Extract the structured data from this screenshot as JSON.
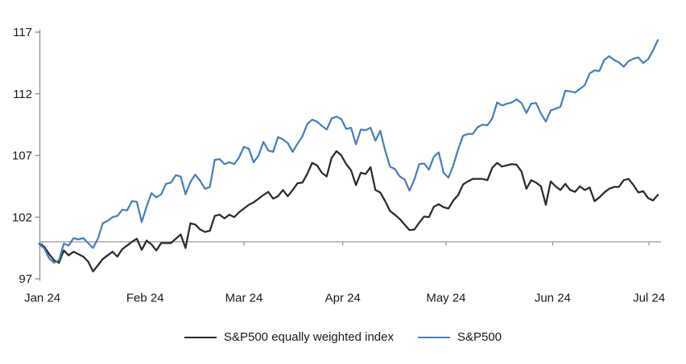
{
  "chart_data": {
    "type": "line",
    "title": "",
    "legend_position": "bottom-center",
    "reference_line_value": 100,
    "axis_color": "#8e8e8e",
    "label_color": "#1a1a1a",
    "font_size_px": 15,
    "y_axis": {
      "ticks": [
        97,
        102,
        107,
        112,
        117
      ],
      "range": [
        97,
        117
      ],
      "gridlines": false
    },
    "x_axis": {
      "tick_labels": [
        "Jan 24",
        "Feb 24",
        "Mar 24",
        "Apr 24",
        "May 24",
        "Jun 24",
        "Jul 24"
      ],
      "tick_point_index": [
        0.6,
        21.7,
        42.0,
        62.3,
        83.5,
        105.4,
        125.2
      ]
    },
    "series": [
      {
        "name": "S&P500 equally weighted index",
        "color": "#2b2b2b",
        "values": [
          99.85,
          99.6,
          99.0,
          98.5,
          98.3,
          99.3,
          98.9,
          99.2,
          99.0,
          98.8,
          98.4,
          97.6,
          98.1,
          98.6,
          98.9,
          99.2,
          98.8,
          99.4,
          99.7,
          100.0,
          100.25,
          99.35,
          100.1,
          99.8,
          99.3,
          99.9,
          99.9,
          99.9,
          100.25,
          100.6,
          99.5,
          101.5,
          101.4,
          101.0,
          100.8,
          100.9,
          102.1,
          102.2,
          101.9,
          102.2,
          102.0,
          102.4,
          102.7,
          103.0,
          103.2,
          103.5,
          103.8,
          104.05,
          103.5,
          103.7,
          104.2,
          103.7,
          104.2,
          104.75,
          104.8,
          105.5,
          106.4,
          106.2,
          105.6,
          105.3,
          106.8,
          107.35,
          107.0,
          106.3,
          105.8,
          104.6,
          105.6,
          105.5,
          106.05,
          104.2,
          104.0,
          103.3,
          102.5,
          102.2,
          101.85,
          101.4,
          100.95,
          101.0,
          101.55,
          102.05,
          102.0,
          102.85,
          103.05,
          102.8,
          102.7,
          103.35,
          103.8,
          104.65,
          104.9,
          105.1,
          105.1,
          105.1,
          105.0,
          106.0,
          106.4,
          106.1,
          106.2,
          106.3,
          106.25,
          105.7,
          104.3,
          105.0,
          104.8,
          104.5,
          103.0,
          104.9,
          104.5,
          104.2,
          104.7,
          104.2,
          104.05,
          104.5,
          104.2,
          104.4,
          103.3,
          103.6,
          104.0,
          104.3,
          104.45,
          104.45,
          105.0,
          105.1,
          104.6,
          104.0,
          104.1,
          103.55,
          103.35,
          103.8
        ]
      },
      {
        "name": "S&P500",
        "color": "#4a7ebc",
        "values": [
          99.8,
          99.45,
          98.65,
          98.3,
          98.5,
          99.85,
          99.7,
          100.3,
          100.2,
          100.3,
          99.9,
          99.5,
          100.25,
          101.5,
          101.7,
          102.0,
          102.1,
          102.6,
          102.55,
          103.3,
          103.25,
          101.6,
          102.85,
          103.95,
          103.6,
          103.85,
          104.7,
          104.8,
          105.4,
          105.3,
          103.85,
          104.85,
          105.45,
          104.95,
          104.3,
          104.45,
          106.65,
          106.7,
          106.3,
          106.45,
          106.3,
          106.85,
          107.7,
          107.55,
          106.45,
          107.0,
          108.1,
          107.4,
          107.3,
          108.5,
          108.3,
          108.0,
          107.3,
          107.95,
          108.55,
          109.55,
          109.9,
          109.75,
          109.4,
          109.1,
          110.0,
          110.15,
          109.95,
          109.15,
          109.25,
          107.9,
          109.1,
          109.05,
          109.25,
          108.2,
          109.0,
          107.4,
          106.1,
          105.9,
          105.3,
          105.05,
          104.15,
          105.05,
          106.3,
          106.35,
          105.85,
          106.9,
          107.25,
          105.6,
          105.2,
          106.2,
          107.5,
          108.6,
          108.75,
          108.75,
          109.3,
          109.5,
          109.45,
          110.0,
          111.3,
          111.05,
          111.2,
          111.3,
          111.55,
          111.25,
          110.45,
          111.2,
          111.25,
          110.4,
          109.75,
          110.65,
          110.8,
          110.95,
          112.25,
          112.2,
          112.1,
          112.4,
          112.7,
          113.65,
          113.9,
          113.85,
          114.75,
          115.05,
          114.75,
          114.55,
          114.2,
          114.65,
          114.85,
          114.95,
          114.5,
          114.8,
          115.5,
          116.35
        ]
      }
    ]
  }
}
